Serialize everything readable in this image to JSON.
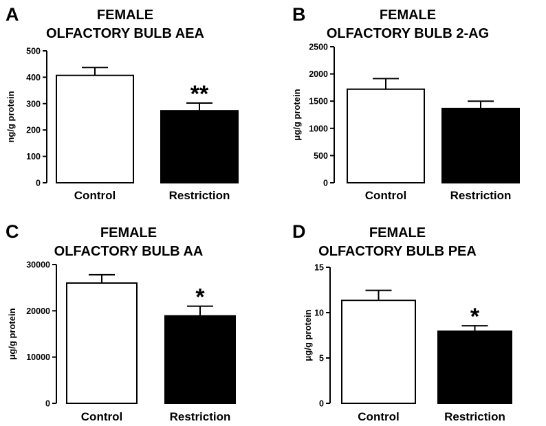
{
  "chart_data": [
    {
      "type": "bar",
      "panel": "A",
      "title": [
        "FEMALE",
        "OLFACTORY BULB AEA"
      ],
      "ylabel": "ng/g protein",
      "categories": [
        "Control",
        "Restriction"
      ],
      "values": [
        407,
        273
      ],
      "errors": [
        30,
        29
      ],
      "bar_colors": [
        "#ffffff",
        "#000000"
      ],
      "significance": [
        "",
        "**"
      ],
      "ylim": [
        0,
        500
      ],
      "yticks": [
        0,
        100,
        200,
        300,
        400,
        500
      ],
      "ytick_labels": [
        "0",
        "100",
        "200",
        "300",
        "400",
        "500"
      ]
    },
    {
      "type": "bar",
      "panel": "B",
      "title": [
        "FEMALE",
        "OLFACTORY BULB 2-AG"
      ],
      "ylabel": "μg/g protein",
      "categories": [
        "Control",
        "Restriction"
      ],
      "values": [
        1720,
        1365
      ],
      "errors": [
        195,
        135
      ],
      "bar_colors": [
        "#ffffff",
        "#000000"
      ],
      "significance": [
        "",
        ""
      ],
      "ylim": [
        0,
        2500
      ],
      "yticks": [
        0,
        500,
        1000,
        1500,
        2000,
        2500
      ],
      "ytick_labels": [
        "0",
        "500",
        "1000",
        "1500",
        "2000",
        "2500"
      ]
    },
    {
      "type": "bar",
      "panel": "C",
      "title": [
        "FEMALE",
        "OLFACTORY BULB AA"
      ],
      "ylabel": "μg/g protein",
      "categories": [
        "Control",
        "Restriction"
      ],
      "values": [
        26000,
        18900
      ],
      "errors": [
        1800,
        2100
      ],
      "bar_colors": [
        "#ffffff",
        "#000000"
      ],
      "significance": [
        "",
        "*"
      ],
      "ylim": [
        0,
        30000
      ],
      "yticks": [
        0,
        10000,
        20000,
        30000
      ],
      "ytick_labels": [
        "0",
        "10000",
        "20000",
        "30000"
      ]
    },
    {
      "type": "bar",
      "panel": "D",
      "title": [
        "FEMALE",
        "OLFACTORY BULB PEA"
      ],
      "ylabel": "μg/g protein",
      "categories": [
        "Control",
        "Restriction"
      ],
      "values": [
        11.35,
        7.95
      ],
      "errors": [
        1.1,
        0.6
      ],
      "bar_colors": [
        "#ffffff",
        "#000000"
      ],
      "significance": [
        "",
        "*"
      ],
      "ylim": [
        0,
        15
      ],
      "yticks": [
        0,
        5,
        10,
        15
      ],
      "ytick_labels": [
        "0",
        "5",
        "10",
        "15"
      ]
    }
  ]
}
